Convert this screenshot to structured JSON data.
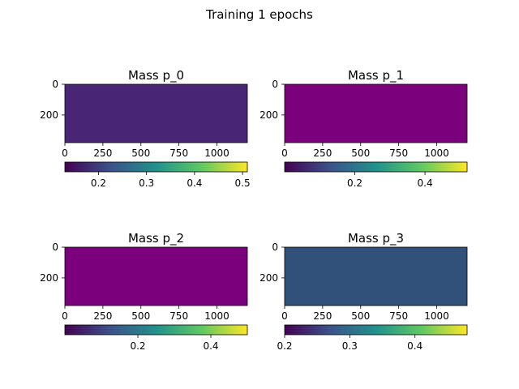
{
  "figure": {
    "title": "Training 1 epochs"
  },
  "chart_data": [
    {
      "type": "heatmap",
      "title": "Mass p_0",
      "xlim": [
        0,
        1200
      ],
      "ylim": [
        0,
        380
      ],
      "y_inverted": true,
      "x_ticks": [
        0,
        250,
        500,
        750,
        1000
      ],
      "y_ticks": [
        0,
        200
      ],
      "fill_value": 0.18,
      "fill_color": "#482575",
      "colorbar": {
        "cmap": "viridis",
        "range": [
          0.13,
          0.51
        ],
        "ticks": [
          "0.2",
          "0.3",
          "0.4",
          "0.5"
        ]
      }
    },
    {
      "type": "heatmap",
      "title": "Mass p_1",
      "xlim": [
        0,
        1200
      ],
      "ylim": [
        0,
        380
      ],
      "y_inverted": true,
      "x_ticks": [
        0,
        250,
        500,
        750,
        1000
      ],
      "y_ticks": [
        0,
        200
      ],
      "fill_value": 0.0,
      "fill_color": "#7b007b",
      "colorbar": {
        "cmap": "purple-viridis",
        "range": [
          0.0,
          0.52
        ],
        "ticks": [
          "0.2",
          "0.4"
        ]
      }
    },
    {
      "type": "heatmap",
      "title": "Mass p_2",
      "xlim": [
        0,
        1200
      ],
      "ylim": [
        0,
        380
      ],
      "y_inverted": true,
      "x_ticks": [
        0,
        250,
        500,
        750,
        1000
      ],
      "y_ticks": [
        0,
        200
      ],
      "fill_value": 0.0,
      "fill_color": "#7b007b",
      "colorbar": {
        "cmap": "purple-viridis",
        "range": [
          0.0,
          0.5
        ],
        "ticks": [
          "0.2",
          "0.4"
        ]
      }
    },
    {
      "type": "heatmap",
      "title": "Mass p_3",
      "xlim": [
        0,
        1200
      ],
      "ylim": [
        0,
        380
      ],
      "y_inverted": true,
      "x_ticks": [
        0,
        250,
        500,
        750,
        1000
      ],
      "y_ticks": [
        0,
        200
      ],
      "fill_value": 0.28,
      "fill_color": "#31517b",
      "colorbar": {
        "cmap": "viridis",
        "range": [
          0.2,
          0.48
        ],
        "ticks": [
          "0.2",
          "0.3",
          "0.4"
        ]
      }
    }
  ]
}
